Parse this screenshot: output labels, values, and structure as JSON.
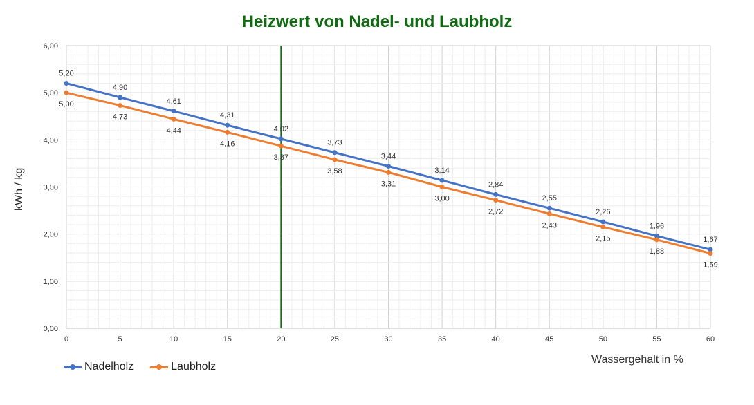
{
  "chart_data": {
    "type": "line",
    "title": "Heizwert von Nadel- und Laubholz",
    "xlabel": "Wassergehalt in %",
    "ylabel": "kWh / kg",
    "x": [
      0,
      5,
      10,
      15,
      20,
      25,
      30,
      35,
      40,
      45,
      50,
      55,
      60
    ],
    "xlim": [
      0,
      60
    ],
    "ylim": [
      0,
      6
    ],
    "yticks": [
      "0,00",
      "1,00",
      "2,00",
      "3,00",
      "4,00",
      "5,00",
      "6,00"
    ],
    "xticks": [
      "0",
      "5",
      "10",
      "15",
      "20",
      "25",
      "30",
      "35",
      "40",
      "45",
      "50",
      "55",
      "60"
    ],
    "vline_x": 20,
    "grid": true,
    "legend_position": "bottom-left",
    "series": [
      {
        "name": "Nadelholz",
        "color": "#4472c4",
        "values": [
          5.2,
          4.9,
          4.61,
          4.31,
          4.02,
          3.73,
          3.44,
          3.14,
          2.84,
          2.55,
          2.26,
          1.96,
          1.67
        ],
        "labels": [
          "5,20",
          "4,90",
          "4,61",
          "4,31",
          "4,02",
          "3,73",
          "3,44",
          "3,14",
          "2,84",
          "2,55",
          "2,26",
          "1,96",
          "1,67"
        ]
      },
      {
        "name": "Laubholz",
        "color": "#ed7d31",
        "values": [
          5.0,
          4.73,
          4.44,
          4.16,
          3.87,
          3.58,
          3.31,
          3.0,
          2.72,
          2.43,
          2.15,
          1.88,
          1.59
        ],
        "labels": [
          "5,00",
          "4,73",
          "4,44",
          "4,16",
          "3,87",
          "3,58",
          "3,31",
          "3,00",
          "2,72",
          "2,43",
          "2,15",
          "1,88",
          "1,59"
        ]
      }
    ],
    "colors": {
      "title": "#0f6b0f",
      "vline": "#1a6b1a",
      "grid": "#d9d9d9"
    }
  }
}
